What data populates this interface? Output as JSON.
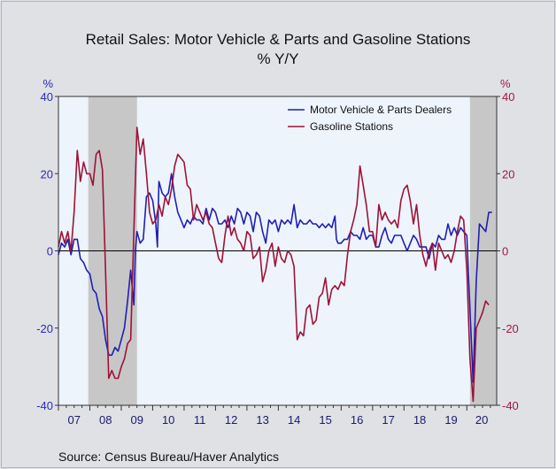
{
  "title_line1": "Retail Sales: Motor Vehicle & Parts and Gasoline Stations",
  "title_line2": "% Y/Y",
  "source": "Source:  Census Bureau/Haver Analytics",
  "colors": {
    "motor": "#1f1fb4",
    "gasoline": "#9e1238",
    "recession": "#c7c7c7",
    "plot_bg": "#eef4fc"
  },
  "chart_data": {
    "type": "line",
    "title": "Retail Sales: Motor Vehicle & Parts and Gasoline Stations % Y/Y",
    "ylabel_left": "%",
    "ylabel_right": "%",
    "ylim": [
      -40,
      40
    ],
    "yticks": [
      40,
      20,
      0,
      -20,
      -40
    ],
    "xlim": [
      2007.0,
      2020.95
    ],
    "x_tick_labels": [
      "07",
      "08",
      "09",
      "10",
      "11",
      "12",
      "13",
      "14",
      "15",
      "16",
      "17",
      "18",
      "19",
      "20"
    ],
    "legend_position": "top-right",
    "recessions": [
      [
        2007.95,
        2009.5
      ],
      [
        2020.1,
        2020.95
      ]
    ],
    "series": [
      {
        "name": "Motor Vehicle & Parts Dealers",
        "axis": "left",
        "points": [
          [
            2007.0,
            -1
          ],
          [
            2007.1,
            2
          ],
          [
            2007.2,
            1
          ],
          [
            2007.3,
            3
          ],
          [
            2007.4,
            -1
          ],
          [
            2007.5,
            3
          ],
          [
            2007.6,
            3
          ],
          [
            2007.7,
            -2
          ],
          [
            2007.8,
            -3
          ],
          [
            2007.9,
            -5
          ],
          [
            2008.0,
            -6
          ],
          [
            2008.1,
            -10
          ],
          [
            2008.2,
            -11
          ],
          [
            2008.3,
            -15
          ],
          [
            2008.4,
            -17
          ],
          [
            2008.5,
            -23
          ],
          [
            2008.6,
            -27
          ],
          [
            2008.7,
            -27
          ],
          [
            2008.8,
            -25
          ],
          [
            2008.9,
            -26
          ],
          [
            2009.0,
            -23
          ],
          [
            2009.1,
            -20
          ],
          [
            2009.2,
            -13
          ],
          [
            2009.3,
            -5
          ],
          [
            2009.4,
            -14
          ],
          [
            2009.45,
            0
          ],
          [
            2009.5,
            5
          ],
          [
            2009.6,
            2
          ],
          [
            2009.7,
            3
          ],
          [
            2009.8,
            14
          ],
          [
            2009.9,
            15
          ],
          [
            2010.0,
            13
          ],
          [
            2010.1,
            7
          ],
          [
            2010.15,
            1
          ],
          [
            2010.2,
            18
          ],
          [
            2010.3,
            15
          ],
          [
            2010.4,
            14
          ],
          [
            2010.5,
            15
          ],
          [
            2010.6,
            20
          ],
          [
            2010.7,
            14
          ],
          [
            2010.8,
            10
          ],
          [
            2010.9,
            8
          ],
          [
            2011.0,
            6
          ],
          [
            2011.1,
            8
          ],
          [
            2011.2,
            7
          ],
          [
            2011.3,
            9
          ],
          [
            2011.4,
            8
          ],
          [
            2011.5,
            8
          ],
          [
            2011.6,
            7
          ],
          [
            2011.7,
            11
          ],
          [
            2011.8,
            8
          ],
          [
            2011.9,
            11
          ],
          [
            2012.0,
            10
          ],
          [
            2012.1,
            7
          ],
          [
            2012.2,
            7
          ],
          [
            2012.3,
            8
          ],
          [
            2012.4,
            6
          ],
          [
            2012.5,
            9
          ],
          [
            2012.6,
            7
          ],
          [
            2012.7,
            11
          ],
          [
            2012.8,
            10
          ],
          [
            2012.9,
            7
          ],
          [
            2013.0,
            10
          ],
          [
            2013.1,
            9
          ],
          [
            2013.2,
            5
          ],
          [
            2013.3,
            10
          ],
          [
            2013.4,
            9
          ],
          [
            2013.5,
            5
          ],
          [
            2013.6,
            2
          ],
          [
            2013.7,
            8
          ],
          [
            2013.8,
            7
          ],
          [
            2013.9,
            8
          ],
          [
            2014.0,
            5
          ],
          [
            2014.1,
            8
          ],
          [
            2014.2,
            7
          ],
          [
            2014.3,
            8
          ],
          [
            2014.4,
            7
          ],
          [
            2014.5,
            12
          ],
          [
            2014.6,
            6
          ],
          [
            2014.7,
            8
          ],
          [
            2014.8,
            7
          ],
          [
            2014.9,
            7
          ],
          [
            2015.0,
            8
          ],
          [
            2015.1,
            7
          ],
          [
            2015.2,
            7
          ],
          [
            2015.3,
            6
          ],
          [
            2015.4,
            7
          ],
          [
            2015.5,
            6
          ],
          [
            2015.6,
            7
          ],
          [
            2015.7,
            6
          ],
          [
            2015.8,
            9
          ],
          [
            2015.85,
            3
          ],
          [
            2015.9,
            2
          ],
          [
            2016.0,
            2
          ],
          [
            2016.1,
            3
          ],
          [
            2016.2,
            3
          ],
          [
            2016.3,
            5
          ],
          [
            2016.4,
            4
          ],
          [
            2016.5,
            4
          ],
          [
            2016.6,
            3
          ],
          [
            2016.7,
            6
          ],
          [
            2016.8,
            3
          ],
          [
            2016.9,
            4
          ],
          [
            2017.0,
            4
          ],
          [
            2017.1,
            1
          ],
          [
            2017.2,
            1
          ],
          [
            2017.3,
            4
          ],
          [
            2017.4,
            6
          ],
          [
            2017.5,
            3
          ],
          [
            2017.6,
            2
          ],
          [
            2017.7,
            4
          ],
          [
            2017.8,
            4
          ],
          [
            2017.9,
            4
          ],
          [
            2018.0,
            2
          ],
          [
            2018.1,
            0
          ],
          [
            2018.2,
            2
          ],
          [
            2018.3,
            4
          ],
          [
            2018.4,
            3
          ],
          [
            2018.5,
            1
          ],
          [
            2018.6,
            1
          ],
          [
            2018.7,
            1
          ],
          [
            2018.8,
            -2
          ],
          [
            2018.9,
            2
          ],
          [
            2019.0,
            1
          ],
          [
            2019.1,
            4
          ],
          [
            2019.2,
            3
          ],
          [
            2019.3,
            3
          ],
          [
            2019.4,
            7
          ],
          [
            2019.5,
            4
          ],
          [
            2019.6,
            6
          ],
          [
            2019.7,
            4
          ],
          [
            2019.8,
            6
          ],
          [
            2019.9,
            5
          ],
          [
            2020.0,
            4
          ],
          [
            2020.1,
            -15
          ],
          [
            2020.2,
            -34
          ],
          [
            2020.3,
            -8
          ],
          [
            2020.4,
            7
          ],
          [
            2020.5,
            6
          ],
          [
            2020.6,
            5
          ],
          [
            2020.7,
            10
          ],
          [
            2020.8,
            10
          ]
        ]
      },
      {
        "name": "Gasoline Stations",
        "axis": "right",
        "points": [
          [
            2007.0,
            1
          ],
          [
            2007.1,
            5
          ],
          [
            2007.2,
            2
          ],
          [
            2007.3,
            5
          ],
          [
            2007.4,
            0
          ],
          [
            2007.5,
            10
          ],
          [
            2007.6,
            26
          ],
          [
            2007.7,
            18
          ],
          [
            2007.8,
            23
          ],
          [
            2007.9,
            20
          ],
          [
            2008.0,
            20
          ],
          [
            2008.1,
            17
          ],
          [
            2008.2,
            25
          ],
          [
            2008.3,
            26
          ],
          [
            2008.4,
            21
          ],
          [
            2008.5,
            -5
          ],
          [
            2008.6,
            -33
          ],
          [
            2008.7,
            -31
          ],
          [
            2008.8,
            -33
          ],
          [
            2008.9,
            -33
          ],
          [
            2009.0,
            -30
          ],
          [
            2009.1,
            -28
          ],
          [
            2009.2,
            -24
          ],
          [
            2009.3,
            -23
          ],
          [
            2009.4,
            5
          ],
          [
            2009.5,
            32
          ],
          [
            2009.6,
            25
          ],
          [
            2009.7,
            29
          ],
          [
            2009.8,
            20
          ],
          [
            2009.9,
            10
          ],
          [
            2010.0,
            7
          ],
          [
            2010.1,
            8
          ],
          [
            2010.2,
            12
          ],
          [
            2010.3,
            9
          ],
          [
            2010.4,
            14
          ],
          [
            2010.5,
            12
          ],
          [
            2010.6,
            16
          ],
          [
            2010.7,
            22
          ],
          [
            2010.8,
            25
          ],
          [
            2010.9,
            24
          ],
          [
            2011.0,
            23
          ],
          [
            2011.1,
            17
          ],
          [
            2011.2,
            16
          ],
          [
            2011.3,
            8
          ],
          [
            2011.4,
            12
          ],
          [
            2011.5,
            10
          ],
          [
            2011.6,
            8
          ],
          [
            2011.7,
            10
          ],
          [
            2011.8,
            7
          ],
          [
            2011.9,
            6
          ],
          [
            2012.0,
            2
          ],
          [
            2012.1,
            -2
          ],
          [
            2012.2,
            -3
          ],
          [
            2012.3,
            4
          ],
          [
            2012.4,
            9
          ],
          [
            2012.5,
            4
          ],
          [
            2012.6,
            6
          ],
          [
            2012.7,
            3
          ],
          [
            2012.8,
            2
          ],
          [
            2012.9,
            0
          ],
          [
            2013.0,
            5
          ],
          [
            2013.1,
            4
          ],
          [
            2013.2,
            -2
          ],
          [
            2013.3,
            -1
          ],
          [
            2013.4,
            1
          ],
          [
            2013.5,
            -8
          ],
          [
            2013.6,
            -5
          ],
          [
            2013.7,
            0
          ],
          [
            2013.8,
            2
          ],
          [
            2013.9,
            -4
          ],
          [
            2014.0,
            1
          ],
          [
            2014.1,
            -2
          ],
          [
            2014.2,
            -3
          ],
          [
            2014.3,
            0
          ],
          [
            2014.4,
            -1
          ],
          [
            2014.5,
            -4
          ],
          [
            2014.6,
            -23
          ],
          [
            2014.7,
            -21
          ],
          [
            2014.8,
            -22
          ],
          [
            2014.9,
            -15
          ],
          [
            2015.0,
            -14
          ],
          [
            2015.1,
            -19
          ],
          [
            2015.2,
            -18
          ],
          [
            2015.3,
            -12
          ],
          [
            2015.4,
            -11
          ],
          [
            2015.5,
            -7
          ],
          [
            2015.6,
            -14
          ],
          [
            2015.7,
            -10
          ],
          [
            2015.8,
            -9
          ],
          [
            2015.9,
            -10
          ],
          [
            2016.0,
            -8
          ],
          [
            2016.1,
            -9
          ],
          [
            2016.2,
            -1
          ],
          [
            2016.3,
            5
          ],
          [
            2016.4,
            8
          ],
          [
            2016.5,
            12
          ],
          [
            2016.6,
            22
          ],
          [
            2016.7,
            17
          ],
          [
            2016.8,
            12
          ],
          [
            2016.9,
            5
          ],
          [
            2017.0,
            5
          ],
          [
            2017.1,
            1
          ],
          [
            2017.2,
            12
          ],
          [
            2017.3,
            8
          ],
          [
            2017.4,
            10
          ],
          [
            2017.5,
            8
          ],
          [
            2017.6,
            7
          ],
          [
            2017.7,
            8
          ],
          [
            2017.8,
            6
          ],
          [
            2017.9,
            13
          ],
          [
            2018.0,
            16
          ],
          [
            2018.1,
            17
          ],
          [
            2018.2,
            13
          ],
          [
            2018.3,
            7
          ],
          [
            2018.4,
            12
          ],
          [
            2018.5,
            4
          ],
          [
            2018.6,
            -1
          ],
          [
            2018.7,
            -4
          ],
          [
            2018.8,
            0
          ],
          [
            2018.9,
            2
          ],
          [
            2019.0,
            -5
          ],
          [
            2019.1,
            2
          ],
          [
            2019.2,
            0
          ],
          [
            2019.3,
            -2
          ],
          [
            2019.4,
            -1
          ],
          [
            2019.5,
            -3
          ],
          [
            2019.6,
            0
          ],
          [
            2019.7,
            5
          ],
          [
            2019.8,
            9
          ],
          [
            2019.9,
            8
          ],
          [
            2020.0,
            -5
          ],
          [
            2020.1,
            -28
          ],
          [
            2020.2,
            -39
          ],
          [
            2020.3,
            -20
          ],
          [
            2020.4,
            -18
          ],
          [
            2020.5,
            -16
          ],
          [
            2020.6,
            -13
          ],
          [
            2020.7,
            -14
          ]
        ]
      }
    ]
  }
}
